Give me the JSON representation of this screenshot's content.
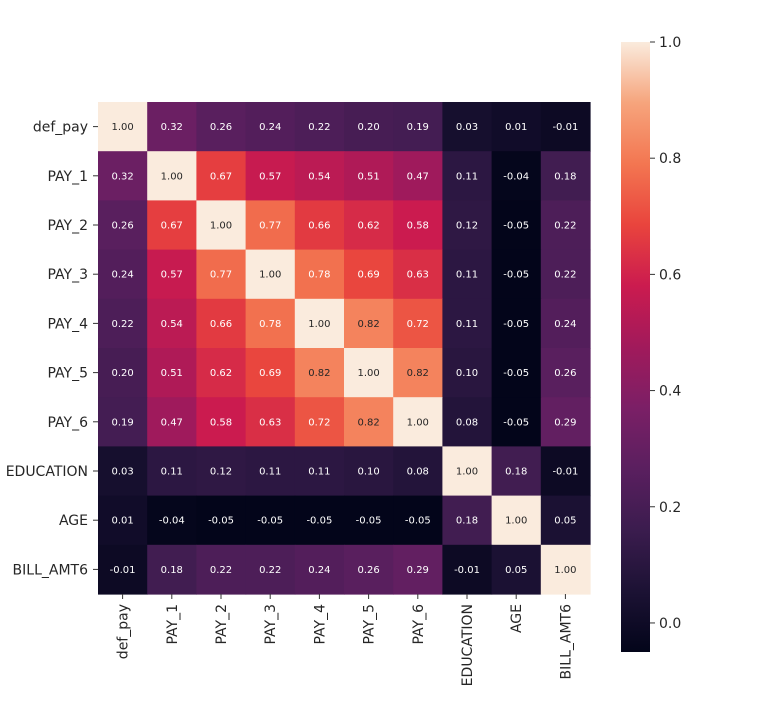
{
  "chart_data": {
    "type": "heatmap",
    "title": "",
    "xlabel": "",
    "ylabel": "",
    "rows": [
      "def_pay",
      "PAY_1",
      "PAY_2",
      "PAY_3",
      "PAY_4",
      "PAY_5",
      "PAY_6",
      "EDUCATION",
      "AGE",
      "BILL_AMT6"
    ],
    "columns": [
      "def_pay",
      "PAY_1",
      "PAY_2",
      "PAY_3",
      "PAY_4",
      "PAY_5",
      "PAY_6",
      "EDUCATION",
      "AGE",
      "BILL_AMT6"
    ],
    "values": [
      [
        1.0,
        0.32,
        0.26,
        0.24,
        0.22,
        0.2,
        0.19,
        0.03,
        0.01,
        -0.01
      ],
      [
        0.32,
        1.0,
        0.67,
        0.57,
        0.54,
        0.51,
        0.47,
        0.11,
        -0.04,
        0.18
      ],
      [
        0.26,
        0.67,
        1.0,
        0.77,
        0.66,
        0.62,
        0.58,
        0.12,
        -0.05,
        0.22
      ],
      [
        0.24,
        0.57,
        0.77,
        1.0,
        0.78,
        0.69,
        0.63,
        0.11,
        -0.05,
        0.22
      ],
      [
        0.22,
        0.54,
        0.66,
        0.78,
        1.0,
        0.82,
        0.72,
        0.11,
        -0.05,
        0.24
      ],
      [
        0.2,
        0.51,
        0.62,
        0.69,
        0.82,
        1.0,
        0.82,
        0.1,
        -0.05,
        0.26
      ],
      [
        0.19,
        0.47,
        0.58,
        0.63,
        0.72,
        0.82,
        1.0,
        0.08,
        -0.05,
        0.29
      ],
      [
        0.03,
        0.11,
        0.12,
        0.11,
        0.11,
        0.1,
        0.08,
        1.0,
        0.18,
        -0.01
      ],
      [
        0.01,
        -0.04,
        -0.05,
        -0.05,
        -0.05,
        -0.05,
        -0.05,
        0.18,
        1.0,
        0.05
      ],
      [
        -0.01,
        0.18,
        0.22,
        0.22,
        0.24,
        0.26,
        0.29,
        -0.01,
        0.05,
        1.0
      ]
    ],
    "value_format": "2dp",
    "colorbar": {
      "min": -0.05,
      "max": 1.0,
      "ticks": [
        0.0,
        0.2,
        0.4,
        0.6,
        0.8,
        1.0
      ],
      "tick_labels": [
        "0.0",
        "0.2",
        "0.4",
        "0.6",
        "0.8",
        "1.0"
      ]
    },
    "colormap": {
      "name": "rocket",
      "stops": [
        {
          "t": 0.0,
          "color": "#03051a"
        },
        {
          "t": 0.1,
          "color": "#1c1234"
        },
        {
          "t": 0.2,
          "color": "#3b1c4e"
        },
        {
          "t": 0.3,
          "color": "#5a1f5f"
        },
        {
          "t": 0.4,
          "color": "#7b1f66"
        },
        {
          "t": 0.5,
          "color": "#a11a5b"
        },
        {
          "t": 0.6,
          "color": "#cb1b4f"
        },
        {
          "t": 0.7,
          "color": "#e9443d"
        },
        {
          "t": 0.8,
          "color": "#f37651"
        },
        {
          "t": 0.9,
          "color": "#f6a47c"
        },
        {
          "t": 1.0,
          "color": "#faebdd"
        }
      ]
    },
    "grid": false,
    "legend": "colorbar-right"
  }
}
